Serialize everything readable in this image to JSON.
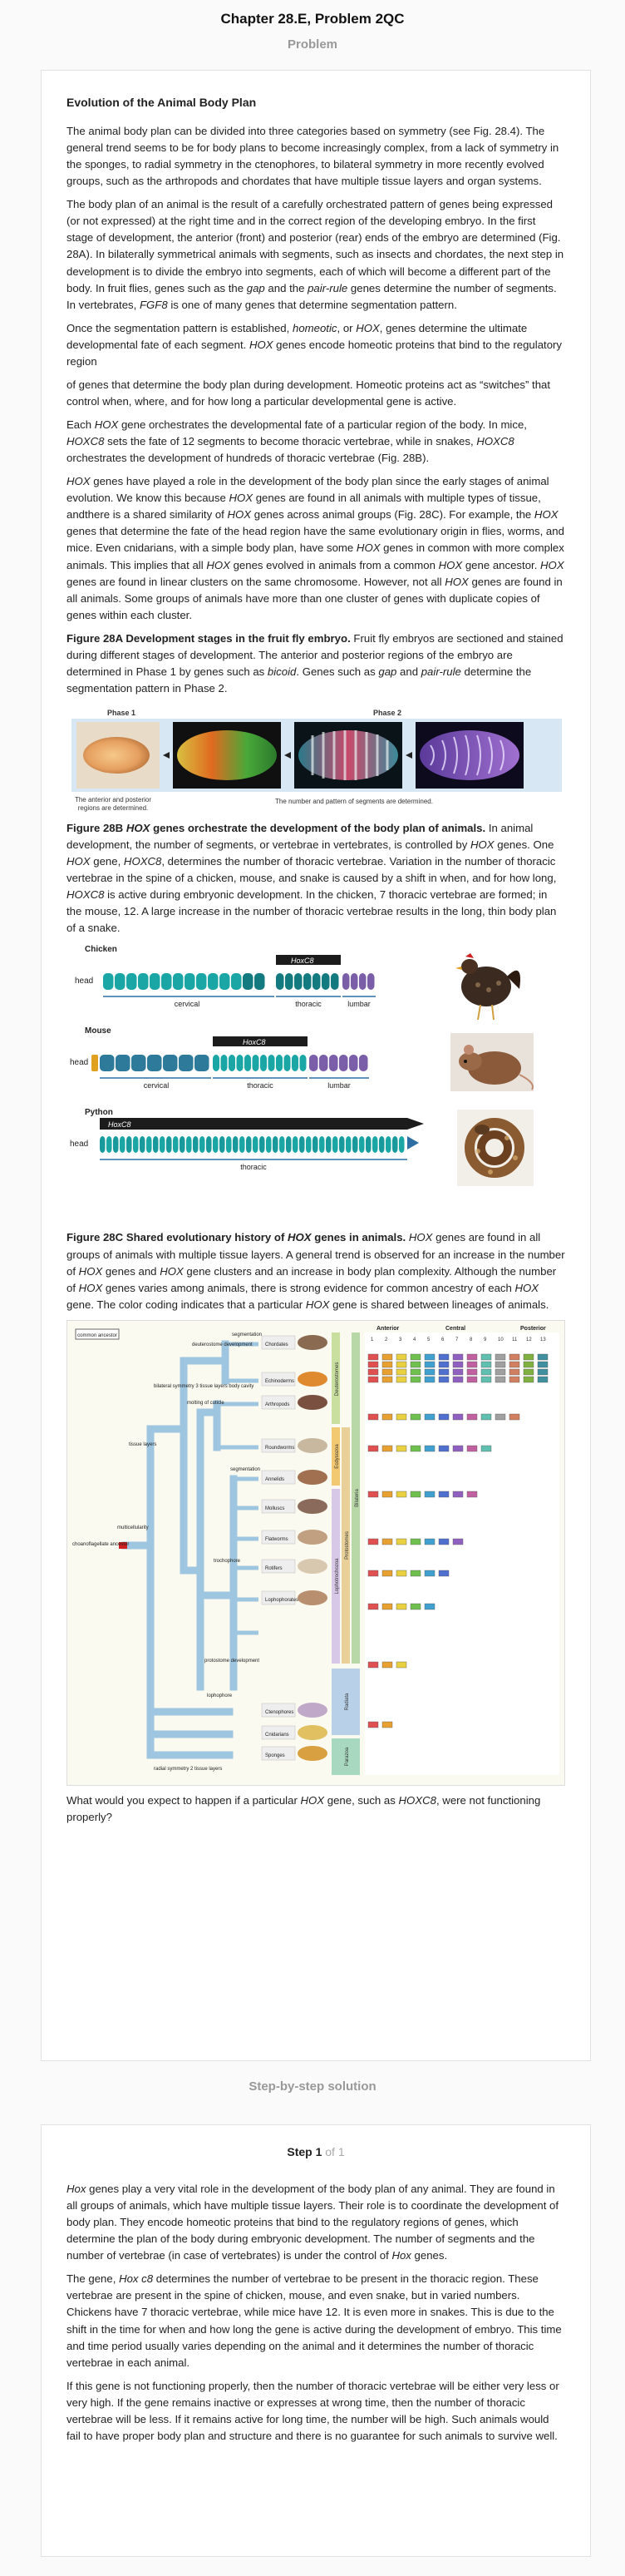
{
  "header": {
    "chapter_title": "Chapter 28.E, Problem 2QC"
  },
  "problem": {
    "section_label": "Problem",
    "heading": "Evolution of the Animal Body Plan",
    "paragraphs": [
      "The animal body plan can be divided into three categories based on symmetry (see Fig. 28.4). The general trend seems to be for body plans to become increasingly complex, from a lack of symmetry in the sponges, to radial symmetry in the ctenophores, to bilateral symmetry in more recently evolved groups, such as the arthropods and chordates that have multiple tissue layers and organ systems.",
      "The body plan of an animal is the result of a carefully orchestrated pattern of genes being expressed (or not expressed) at the right time and in the correct region of the developing embryo. In the first stage of development, the anterior (front) and posterior (rear) ends of the embryo are determined (Fig. 28A). In bilaterally symmetrical animals with segments, such as insects and chordates, the next step in development is to divide the embryo into segments, each of which will become a different part of the body. In fruit flies, genes such as the gap and the pair-rule genes determine the number of segments. In vertebrates, FGF8 is one of many genes that determine segmentation pattern.",
      "Once the segmentation pattern is established, homeotic, or HOX, genes determine the ultimate developmental fate of each segment. HOX genes encode homeotic proteins that bind to the regulatory region",
      "of genes that determine the body plan during development. Homeotic proteins act as “switches” that control when, where, and for how long a particular developmental gene is active.",
      "Each HOX gene orchestrates the developmental fate of a particular region of the body. In mice, HOXC8 sets the fate of 12 segments to become thoracic vertebrae, while in snakes, HOXC8 orchestrates the development of hundreds of thoracic vertebrae (Fig. 28B).",
      "HOX genes have played a role in the development of the body plan since the early stages of animal evolution. We know this because HOX genes are found in all animals with multiple types of tissue, andthere is a shared similarity of HOX genes across animal groups (Fig. 28C). For example, the HOX genes that determine the fate of the head region have the same evolutionary origin in flies, worms, and mice. Even cnidarians, with a simple body plan, have some HOX genes in common with more complex animals. This implies that all HOX genes evolved in animals from a common HOX gene ancestor. HOX genes are found in linear clusters on the same chromosome. However, not all HOX genes are found in all animals. Some groups of animals have more than one cluster of genes with duplicate copies of genes within each cluster."
    ],
    "fig28a_caption_title": "Figure 28A Development stages in the fruit fly embryo.",
    "fig28a_caption_text": "Fruit fly embryos are sectioned and stained during different stages of development. The anterior and posterior regions of the embryo are determined in Phase 1 by genes such as bicoid. Genes such as gap and pair-rule determine the segmentation pattern in Phase 2.",
    "fig28a": {
      "phase1": "Phase 1",
      "phase2": "Phase 2",
      "note1_line1": "The anterior and posterior",
      "note1_line2": "regions are determined.",
      "note2": "The number and pattern of segments are determined."
    },
    "fig28b_caption_title": "Figure 28B HOX genes orchestrate the development of the body plan of animals.",
    "fig28b_caption_text": "In animal development, the number of segments, or vertebrae in vertebrates, is controlled by HOX genes. One HOX gene, HOXC8, determines the number of thoracic vertebrae. Variation in the number of thoracic vertebrae in the spine of a chicken, mouse, and snake is caused by a shift in when, and for how long, HOXC8 is active during embryonic development. In the chicken, 7 thoracic vertebrae are formed; in the mouse, 12. A large increase in the number of thoracic vertebrae results in the long, thin body plan of a snake.",
    "fig28b": {
      "animals": [
        {
          "name": "Chicken",
          "gene": "HoxC8",
          "head": "head",
          "regions": [
            "cervical",
            "thoracic",
            "lumbar"
          ]
        },
        {
          "name": "Mouse",
          "gene": "HoxC8",
          "head": "head",
          "regions": [
            "cervical",
            "thoracic",
            "lumbar"
          ]
        },
        {
          "name": "Python",
          "gene": "HoxC8",
          "head": "head",
          "regions": [
            "thoracic"
          ]
        }
      ]
    },
    "fig28c_caption_title": "Figure 28C Shared evolutionary history of HOX genes in animals.",
    "fig28c_caption_text": "HOX genes are found in all groups of animals with multiple tissue layers. A general trend is observed for an increase in the number of HOX genes and HOX gene clusters and an increase in body plan complexity. Although the number of HOX genes varies among animals, there is strong evidence for common ancestry of each HOX gene. The color coding indicates that a particular HOX gene is shared between lineages of animals.",
    "fig28c": {
      "legend": "common ancestor",
      "ancestor": "choanoflagellate ancestor",
      "nodes": [
        "multicellularity",
        "tissue layers",
        "bilateral symmetry 3 tissue layers body cavity",
        "deuterostome development",
        "protostome development",
        "molting of cuticle",
        "segmentation",
        "segmentation",
        "trochophore",
        "lophophore",
        "radial symmetry 2 tissue layers"
      ],
      "taxa": [
        "Chordates",
        "Echinoderms",
        "Arthropods",
        "Roundworms",
        "Annelids",
        "Molluscs",
        "Flatworms",
        "Rotifers",
        "Lophophorates",
        "Ctenophores",
        "Cnidarians",
        "Sponges"
      ],
      "groups": [
        "Deuterostomes",
        "Ecdysozoa",
        "Lophotrochozoa",
        "Protostomes",
        "Bilateria",
        "Radiata",
        "Parazoa"
      ],
      "hox_headers": [
        "Anterior",
        "Central",
        "Posterior"
      ],
      "hox_numbers": [
        "1",
        "2",
        "3",
        "4",
        "5",
        "6",
        "7",
        "8",
        "9",
        "10",
        "11",
        "12",
        "13"
      ]
    },
    "question": "What would you expect to happen if a particular HOX gene, such as HOXC8, were not functioning properly?"
  },
  "solution": {
    "section_label": "Step-by-step solution",
    "step_label": "Step 1",
    "step_of": "of 1",
    "paragraphs": [
      "Hox genes play a very vital role in the development of the body plan of any animal. They are found in all groups of animals, which have multiple tissue layers. Their role is to coordinate the development of body plan. They encode homeotic proteins that bind to the regulatory regions of genes, which determine the plan of the body during embryonic development. The number of segments and the number of vertebrae (in case of vertebrates) is under the control of Hox genes.",
      "The gene, Hox c8 determines the number of vertebrae to be present in the thoracic region. These vertebrae are present in the spine of chicken, mouse, and even snake, but in varied numbers. Chickens have 7 thoracic vertebrae, while mice have 12. It is even more in snakes. This is due to the shift in the time for when and how long the gene is active during the development of embryo. This time and time period usually varies depending on the animal and it determines the number of thoracic vertebrae in each animal.",
      "If this gene is not functioning properly, then the number of thoracic vertebrae will be either very less or very high. If the gene remains inactive or expresses at wrong time, then the number of thoracic vertebrae will be less. If it remains active for long time, the number will be high. Such animals would fail to have proper body plan and structure and there is no guarantee for such animals to survive well."
    ]
  },
  "colors": {
    "accent": "#f47b20",
    "vertebra": "#1ba6a6",
    "cervical_bar": "#2d6fa3",
    "lumbar": "#7b5ea8",
    "tree": "#9fc6e0"
  }
}
